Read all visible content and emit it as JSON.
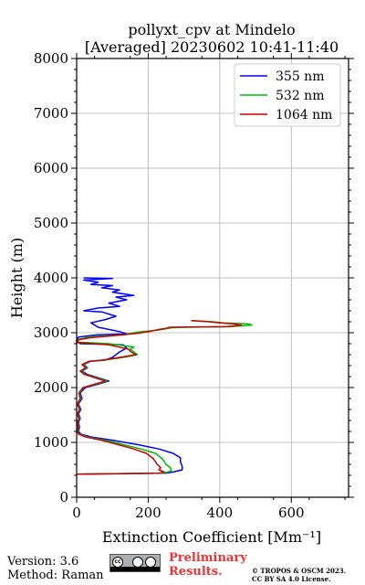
{
  "chart_data": {
    "type": "line",
    "title": "pollyxt_cpv at Mindelo",
    "subtitle": "[Averaged] 20230602 10:41-11:40",
    "xlabel": "Extinction Coefficient [Mm⁻¹]",
    "ylabel": "Height (m)",
    "xlim": [
      0,
      760
    ],
    "ylim": [
      0,
      8000
    ],
    "xticks": [
      0,
      200,
      400,
      600
    ],
    "yticks": [
      0,
      1000,
      2000,
      3000,
      4000,
      5000,
      6000,
      7000,
      8000
    ],
    "grid": true,
    "legend_position": "top-right",
    "series": [
      {
        "name": "355 nm",
        "color": "#0000ff",
        "points": [
          [
            0,
            420
          ],
          [
            250,
            440
          ],
          [
            270,
            460
          ],
          [
            295,
            500
          ],
          [
            295,
            560
          ],
          [
            290,
            650
          ],
          [
            290,
            720
          ],
          [
            270,
            800
          ],
          [
            230,
            880
          ],
          [
            170,
            960
          ],
          [
            100,
            1040
          ],
          [
            40,
            1100
          ],
          [
            12,
            1150
          ],
          [
            5,
            1200
          ],
          [
            8,
            1280
          ],
          [
            5,
            1360
          ],
          [
            10,
            1440
          ],
          [
            5,
            1520
          ],
          [
            12,
            1600
          ],
          [
            5,
            1700
          ],
          [
            15,
            1800
          ],
          [
            10,
            1900
          ],
          [
            25,
            2000
          ],
          [
            60,
            2060
          ],
          [
            90,
            2120
          ],
          [
            60,
            2180
          ],
          [
            30,
            2240
          ],
          [
            15,
            2300
          ],
          [
            30,
            2360
          ],
          [
            20,
            2420
          ],
          [
            40,
            2480
          ],
          [
            80,
            2500
          ],
          [
            100,
            2550
          ],
          [
            120,
            2650
          ],
          [
            140,
            2720
          ],
          [
            130,
            2780
          ],
          [
            10,
            2800
          ],
          [
            0,
            2860
          ],
          [
            5,
            2920
          ],
          [
            55,
            2960
          ],
          [
            140,
            2980
          ],
          [
            120,
            3020
          ],
          [
            60,
            3100
          ],
          [
            40,
            3180
          ],
          [
            80,
            3240
          ],
          [
            110,
            3300
          ],
          [
            70,
            3380
          ],
          [
            20,
            3400
          ],
          [
            60,
            3450
          ],
          [
            120,
            3480
          ],
          [
            90,
            3540
          ],
          [
            140,
            3600
          ],
          [
            110,
            3650
          ],
          [
            160,
            3680
          ],
          [
            100,
            3740
          ],
          [
            120,
            3780
          ],
          [
            70,
            3820
          ],
          [
            100,
            3860
          ],
          [
            40,
            3880
          ],
          [
            60,
            3920
          ],
          [
            20,
            3960
          ],
          [
            100,
            3990
          ],
          [
            20,
            4000
          ]
        ]
      },
      {
        "name": "532 nm",
        "color": "#00bb00",
        "points": [
          [
            0,
            420
          ],
          [
            240,
            440
          ],
          [
            255,
            460
          ],
          [
            265,
            480
          ],
          [
            262,
            540
          ],
          [
            250,
            600
          ],
          [
            240,
            700
          ],
          [
            220,
            800
          ],
          [
            180,
            880
          ],
          [
            130,
            960
          ],
          [
            80,
            1040
          ],
          [
            30,
            1100
          ],
          [
            8,
            1150
          ],
          [
            2,
            1200
          ],
          [
            5,
            1280
          ],
          [
            3,
            1360
          ],
          [
            8,
            1440
          ],
          [
            3,
            1520
          ],
          [
            10,
            1600
          ],
          [
            3,
            1700
          ],
          [
            12,
            1800
          ],
          [
            8,
            1900
          ],
          [
            20,
            2000
          ],
          [
            55,
            2060
          ],
          [
            85,
            2120
          ],
          [
            55,
            2180
          ],
          [
            25,
            2240
          ],
          [
            12,
            2300
          ],
          [
            28,
            2360
          ],
          [
            18,
            2420
          ],
          [
            38,
            2480
          ],
          [
            75,
            2500
          ],
          [
            110,
            2530
          ],
          [
            140,
            2560
          ],
          [
            170,
            2600
          ],
          [
            160,
            2650
          ],
          [
            150,
            2700
          ],
          [
            160,
            2740
          ],
          [
            90,
            2800
          ],
          [
            0,
            2830
          ],
          [
            5,
            2880
          ],
          [
            40,
            2930
          ],
          [
            130,
            2960
          ],
          [
            170,
            3010
          ],
          [
            230,
            3050
          ],
          [
            265,
            3090
          ],
          [
            300,
            3100
          ],
          [
            430,
            3110
          ],
          [
            490,
            3140
          ],
          [
            480,
            3160
          ],
          [
            410,
            3180
          ],
          [
            380,
            3200
          ],
          [
            320,
            3220
          ]
        ]
      },
      {
        "name": "1064 nm",
        "color": "#cc0000",
        "points": [
          [
            0,
            420
          ],
          [
            230,
            440
          ],
          [
            245,
            460
          ],
          [
            230,
            500
          ],
          [
            235,
            540
          ],
          [
            225,
            600
          ],
          [
            215,
            700
          ],
          [
            195,
            800
          ],
          [
            160,
            880
          ],
          [
            115,
            960
          ],
          [
            70,
            1040
          ],
          [
            25,
            1100
          ],
          [
            6,
            1150
          ],
          [
            0,
            1200
          ],
          [
            4,
            1280
          ],
          [
            2,
            1360
          ],
          [
            6,
            1440
          ],
          [
            2,
            1520
          ],
          [
            8,
            1600
          ],
          [
            2,
            1700
          ],
          [
            10,
            1800
          ],
          [
            6,
            1900
          ],
          [
            18,
            2000
          ],
          [
            50,
            2060
          ],
          [
            80,
            2120
          ],
          [
            50,
            2180
          ],
          [
            22,
            2240
          ],
          [
            10,
            2300
          ],
          [
            25,
            2360
          ],
          [
            15,
            2420
          ],
          [
            35,
            2480
          ],
          [
            70,
            2500
          ],
          [
            100,
            2530
          ],
          [
            130,
            2560
          ],
          [
            165,
            2600
          ],
          [
            150,
            2660
          ],
          [
            145,
            2700
          ],
          [
            90,
            2780
          ],
          [
            0,
            2820
          ],
          [
            5,
            2870
          ],
          [
            40,
            2910
          ],
          [
            110,
            2950
          ],
          [
            170,
            2990
          ],
          [
            210,
            3030
          ],
          [
            230,
            3060
          ],
          [
            250,
            3080
          ],
          [
            260,
            3100
          ],
          [
            420,
            3110
          ],
          [
            460,
            3140
          ],
          [
            440,
            3160
          ],
          [
            400,
            3180
          ],
          [
            370,
            3200
          ],
          [
            320,
            3220
          ]
        ]
      }
    ]
  },
  "footer": {
    "version": "Version: 3.6",
    "method": "Method: Raman",
    "license_badge": "CC BY SA",
    "preliminary_line1": "Preliminary",
    "preliminary_line2": "Results.",
    "copyright_line1": "© TROPOS & OSCM 2023.",
    "copyright_line2": "CC BY SA 4.0 License."
  }
}
